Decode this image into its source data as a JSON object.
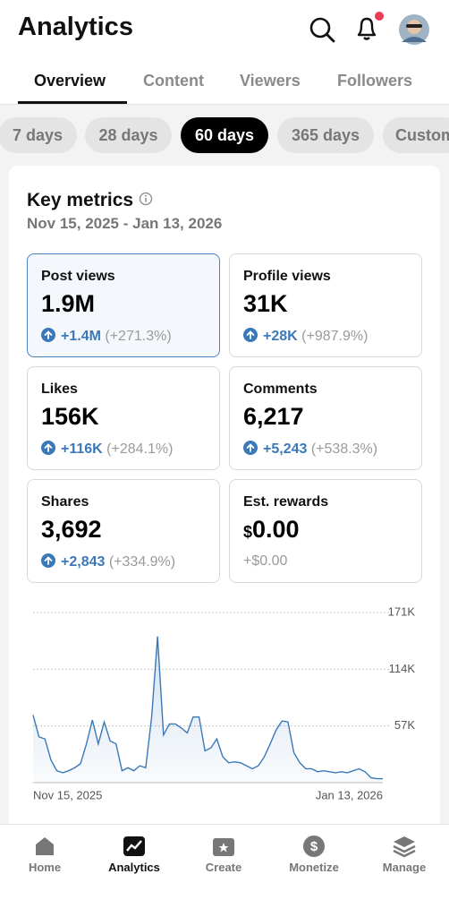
{
  "header": {
    "title": "Analytics"
  },
  "tabs": [
    "Overview",
    "Content",
    "Viewers",
    "Followers"
  ],
  "ranges": [
    "7 days",
    "28 days",
    "60 days",
    "365 days",
    "Custom"
  ],
  "card": {
    "title": "Key metrics",
    "date_range": "Nov 15, 2025 - Jan 13, 2026"
  },
  "metrics": [
    {
      "label": "Post views",
      "value": "1.9M",
      "change": "+1.4M",
      "pct": "(+271.3%)"
    },
    {
      "label": "Profile views",
      "value": "31K",
      "change": "+28K",
      "pct": "(+987.9%)"
    },
    {
      "label": "Likes",
      "value": "156K",
      "change": "+116K",
      "pct": "(+284.1%)"
    },
    {
      "label": "Comments",
      "value": "6,217",
      "change": "+5,243",
      "pct": "(+538.3%)"
    },
    {
      "label": "Shares",
      "value": "3,692",
      "change": "+2,843",
      "pct": "(+334.9%)"
    },
    {
      "label": "Est. rewards",
      "currency": "$",
      "value": "0.00",
      "change": "+$0.00"
    }
  ],
  "chart_data": {
    "type": "line",
    "categories": [
      "Nov 15, 2025",
      null,
      null,
      null,
      null,
      null,
      null,
      null,
      null,
      null,
      null,
      null,
      null,
      null,
      null,
      null,
      null,
      null,
      null,
      null,
      null,
      null,
      null,
      null,
      null,
      null,
      null,
      null,
      null,
      null,
      null,
      null,
      null,
      null,
      null,
      null,
      null,
      null,
      null,
      null,
      null,
      null,
      null,
      null,
      null,
      null,
      null,
      null,
      null,
      null,
      null,
      null,
      null,
      null,
      null,
      null,
      null,
      null,
      null,
      "Jan 13, 2026"
    ],
    "values": [
      68000,
      46000,
      44000,
      23000,
      12000,
      10000,
      12000,
      15000,
      19000,
      39000,
      63000,
      39000,
      61000,
      42000,
      39000,
      12000,
      15000,
      12000,
      17000,
      15000,
      66000,
      147000,
      48000,
      59000,
      59000,
      55000,
      50000,
      66000,
      66000,
      32000,
      35000,
      44000,
      26000,
      20000,
      21000,
      20000,
      17000,
      14000,
      17000,
      26000,
      39000,
      53000,
      62000,
      61000,
      30000,
      20000,
      14000,
      14000,
      11000,
      12000,
      11000,
      10000,
      11000,
      10000,
      12000,
      14000,
      11000,
      5000,
      4000,
      4000
    ],
    "color": "#3b78b8",
    "ylim": [
      0,
      171000
    ],
    "yticks": [
      {
        "value": 57000,
        "label": "57K"
      },
      {
        "value": 114000,
        "label": "114K"
      },
      {
        "value": 171000,
        "label": "171K"
      }
    ],
    "grid": true
  },
  "nav": [
    "Home",
    "Analytics",
    "Create",
    "Monetize",
    "Manage"
  ]
}
